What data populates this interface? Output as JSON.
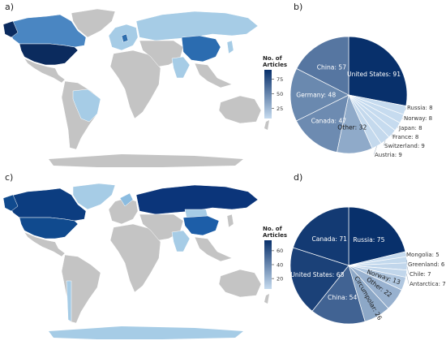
{
  "panels": {
    "a": "a)",
    "b": "b)",
    "c": "c)",
    "d": "d)"
  },
  "colors": {
    "no_data": "#c4c4c4",
    "ocean": "#ffffff",
    "scale_low": "#c6dbef",
    "scale_high": "#08306b"
  },
  "chart_data": [
    {
      "type": "map",
      "panel": "a",
      "colorbar_title": [
        "No. of",
        "Articles"
      ],
      "colorbar_ticks": [
        25,
        50,
        75
      ],
      "colorbar_range": [
        8,
        91
      ],
      "shaded_countries": [
        {
          "name": "United States",
          "value": 91
        },
        {
          "name": "China",
          "value": 57
        },
        {
          "name": "Germany",
          "value": 48
        },
        {
          "name": "Canada",
          "value": 47
        },
        {
          "name": "Switzerland",
          "value": 9
        },
        {
          "name": "Austria",
          "value": 9
        },
        {
          "name": "Russia",
          "value": 8
        },
        {
          "name": "Norway",
          "value": 8
        },
        {
          "name": "Japan",
          "value": 8
        },
        {
          "name": "France",
          "value": 8
        }
      ]
    },
    {
      "type": "pie",
      "panel": "b",
      "slices": [
        {
          "label": "United States",
          "value": 91,
          "text": "United States: 91",
          "label_pos": "inside"
        },
        {
          "label": "Russia",
          "value": 8,
          "text": "Russia: 8",
          "label_pos": "outside"
        },
        {
          "label": "Norway",
          "value": 8,
          "text": "Norway: 8",
          "label_pos": "outside"
        },
        {
          "label": "Japan",
          "value": 8,
          "text": "Japan: 8",
          "label_pos": "outside"
        },
        {
          "label": "France",
          "value": 8,
          "text": "France: 8",
          "label_pos": "outside"
        },
        {
          "label": "Switzerland",
          "value": 9,
          "text": "Switzerland: 9",
          "label_pos": "outside"
        },
        {
          "label": "Austria",
          "value": 9,
          "text": "Austria: 9",
          "label_pos": "outside"
        },
        {
          "label": "Other",
          "value": 32,
          "text": "Other: 32",
          "label_pos": "inside"
        },
        {
          "label": "Canada",
          "value": 47,
          "text": "Canada: 47",
          "label_pos": "inside"
        },
        {
          "label": "Germany",
          "value": 48,
          "text": "Germany: 48",
          "label_pos": "inside"
        },
        {
          "label": "China",
          "value": 57,
          "text": "China: 57",
          "label_pos": "inside"
        }
      ]
    },
    {
      "type": "map",
      "panel": "c",
      "colorbar_title": [
        "No. of",
        "Articles"
      ],
      "colorbar_ticks": [
        20,
        40,
        60
      ],
      "colorbar_range": [
        5,
        75
      ],
      "shaded_countries": [
        {
          "name": "Russia",
          "value": 75
        },
        {
          "name": "Canada",
          "value": 71
        },
        {
          "name": "United States",
          "value": 68
        },
        {
          "name": "China",
          "value": 54
        },
        {
          "name": "Norway",
          "value": 13
        },
        {
          "name": "Antarctica",
          "value": 7
        },
        {
          "name": "Chile",
          "value": 7
        },
        {
          "name": "Greenland",
          "value": 6
        },
        {
          "name": "Mongolia",
          "value": 5
        }
      ]
    },
    {
      "type": "pie",
      "panel": "d",
      "slices": [
        {
          "label": "Russia",
          "value": 75,
          "text": "Russia: 75",
          "label_pos": "inside"
        },
        {
          "label": "Mongolia",
          "value": 5,
          "text": "Mongolia: 5",
          "label_pos": "outside"
        },
        {
          "label": "Greenland",
          "value": 6,
          "text": "Greenland: 6",
          "label_pos": "outside"
        },
        {
          "label": "Chile",
          "value": 7,
          "text": "Chile: 7",
          "label_pos": "outside"
        },
        {
          "label": "Antarctica",
          "value": 7,
          "text": "Antarctica: 7",
          "label_pos": "outside"
        },
        {
          "label": "Norway",
          "value": 13,
          "text": "Norway: 13",
          "label_pos": "inside_rotated"
        },
        {
          "label": "Other",
          "value": 22,
          "text": "Other: 22",
          "label_pos": "inside_rotated"
        },
        {
          "label": "Circumpolar",
          "value": 26,
          "text": "Circumpolar: 26",
          "label_pos": "inside_rotated"
        },
        {
          "label": "China",
          "value": 54,
          "text": "China: 54",
          "label_pos": "inside"
        },
        {
          "label": "United States",
          "value": 68,
          "text": "United States: 68",
          "label_pos": "inside"
        },
        {
          "label": "Canada",
          "value": 71,
          "text": "Canada: 71",
          "label_pos": "inside"
        }
      ]
    }
  ]
}
